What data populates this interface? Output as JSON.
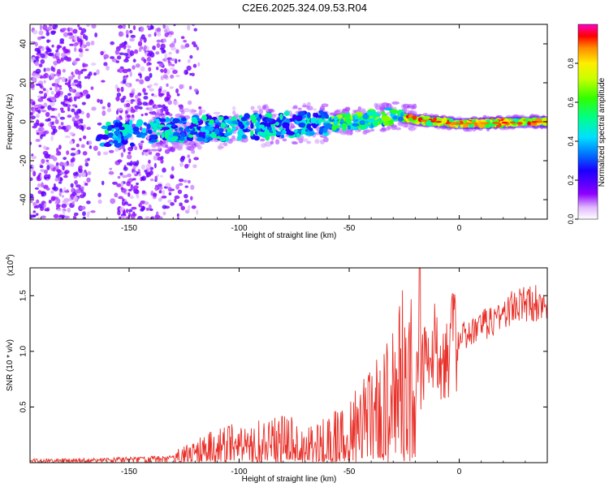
{
  "title": "C2E6.2025.324.09.53.R04",
  "chart_data": [
    {
      "type": "heatmap",
      "name": "spectrogram",
      "xlabel": "Height of straight line (km)",
      "ylabel": "Frequency (Hz)",
      "xlim": [
        -195,
        40
      ],
      "ylim": [
        -50,
        50
      ],
      "xticks": [
        -150,
        -100,
        -50,
        0
      ],
      "yticks": [
        -40,
        -20,
        0,
        20,
        40
      ],
      "tone_band": {
        "description": "dense signal band near 0 Hz",
        "points": [
          {
            "x": -162,
            "f": -7
          },
          {
            "x": -130,
            "f": -4
          },
          {
            "x": -100,
            "f": -3
          },
          {
            "x": -70,
            "f": -1
          },
          {
            "x": -50,
            "f": 0
          },
          {
            "x": -30,
            "f": 3
          },
          {
            "x": -20,
            "f": 1
          },
          {
            "x": 0,
            "f": -1
          },
          {
            "x": 40,
            "f": 0
          }
        ]
      },
      "scatter_region": {
        "x_from": -195,
        "x_to": -125,
        "f_from": -50,
        "f_to": 50
      },
      "colorbar": {
        "label": "Normalized spectral amplitude",
        "range": [
          0.0,
          1.0
        ],
        "ticks": [
          0.0,
          0.2,
          0.4,
          0.6,
          0.8
        ],
        "tick_labels": [
          "0.0",
          "0.2",
          "0.4",
          "0.6",
          "0.8"
        ]
      }
    },
    {
      "type": "line",
      "name": "snr",
      "xlabel": "Height of straight line (km)",
      "ylabel": "SNR (10 * v/v)",
      "multiplier_label": "(x10",
      "multiplier_exp": "4",
      "xlim": [
        -195,
        40
      ],
      "ylim": [
        0.0,
        1.75
      ],
      "xticks": [
        -150,
        -100,
        -50,
        0
      ],
      "yticks": [
        0.5,
        1.0,
        1.5
      ],
      "ytick_labels": [
        "0.5",
        "1.0",
        "1.5"
      ],
      "color": "#e8312a",
      "envelope": [
        {
          "x": -195,
          "v": 0.02
        },
        {
          "x": -160,
          "v": 0.03
        },
        {
          "x": -130,
          "v": 0.05
        },
        {
          "x": -120,
          "v": 0.12
        },
        {
          "x": -100,
          "v": 0.2
        },
        {
          "x": -80,
          "v": 0.24
        },
        {
          "x": -70,
          "v": 0.18
        },
        {
          "x": -60,
          "v": 0.22
        },
        {
          "x": -50,
          "v": 0.3
        },
        {
          "x": -40,
          "v": 0.45
        },
        {
          "x": -30,
          "v": 0.65
        },
        {
          "x": -25,
          "v": 0.9
        },
        {
          "x": -20,
          "v": 0.7
        },
        {
          "x": -15,
          "v": 0.95
        },
        {
          "x": -5,
          "v": 1.05
        },
        {
          "x": 10,
          "v": 1.22
        },
        {
          "x": 25,
          "v": 1.4
        },
        {
          "x": 40,
          "v": 1.46
        }
      ],
      "peak": {
        "x": -18,
        "v": 1.75
      }
    }
  ]
}
